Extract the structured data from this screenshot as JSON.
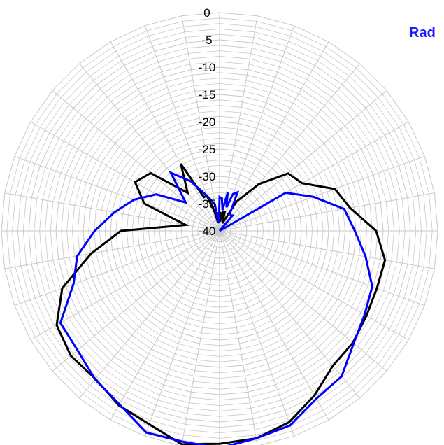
{
  "chart_data": {
    "type": "polar-line",
    "title": "Rad",
    "r_axis": {
      "min": -40,
      "max": 0,
      "tick_labels": [
        "0",
        "-5",
        "-10",
        "-15",
        "-20",
        "-25",
        "-30",
        "-35",
        "-40"
      ],
      "tick_values": [
        0,
        -5,
        -10,
        -15,
        -20,
        -25,
        -30,
        -35,
        -40
      ]
    },
    "grid": true,
    "colors": {
      "grid": "#c8c8c8",
      "title": "#1a1aff"
    },
    "series": [
      {
        "color": "#000000",
        "angles_deg": [
          0,
          2,
          4,
          6,
          8,
          10,
          12,
          15,
          20,
          30,
          40,
          50,
          60,
          70,
          80,
          90,
          100,
          110,
          120,
          130,
          140,
          150,
          160,
          170,
          180,
          190,
          200,
          210,
          220,
          230,
          240,
          250,
          260,
          270,
          280,
          290,
          300,
          310,
          320,
          330,
          335,
          340,
          345,
          350,
          355,
          358
        ],
        "values": [
          -37.2,
          -36.5,
          -38.3,
          -36.6,
          -37.8,
          -36.2,
          -37.5,
          -36.2,
          -38.5,
          -33.8,
          -28.8,
          -23.6,
          -22.5,
          -17.5,
          -15.7,
          -11.3,
          -9.2,
          -9.3,
          -8.9,
          -8.1,
          -7.7,
          -5.2,
          -2.7,
          -1.4,
          -1.0,
          -0.3,
          -2.3,
          -3.1,
          -4.6,
          -4.4,
          -5.5,
          -9.3,
          -16.1,
          -21.9,
          -33.7,
          -25.3,
          -22.1,
          -23.5,
          -30.9,
          -25.8,
          -33.2,
          -33.1,
          -36.0,
          -38.5,
          -36.6,
          -37.0
        ]
      },
      {
        "color": "#0000ff",
        "angles_deg": [
          0,
          4,
          8,
          12,
          16,
          20,
          25,
          30,
          35,
          40,
          50,
          60,
          70,
          80,
          90,
          100,
          110,
          120,
          130,
          140,
          150,
          160,
          170,
          180,
          190,
          200,
          210,
          220,
          230,
          240,
          250,
          260,
          270,
          280,
          290,
          300,
          310,
          320,
          330,
          340,
          350,
          355
        ],
        "values": [
          -33.8,
          -34.0,
          -36.1,
          -32.8,
          -35.5,
          -32.8,
          -32.2,
          -36.0,
          -36.5,
          -36.3,
          -40.0,
          -26.0,
          -21.7,
          -16.8,
          -15.2,
          -12.8,
          -10.2,
          -9.3,
          -7.9,
          -5.2,
          -4.5,
          -2.1,
          -1.4,
          -0.2,
          -0.8,
          -0.7,
          -3.3,
          -4.5,
          -6.0,
          -6.3,
          -11.5,
          -13.5,
          -17.1,
          -20.4,
          -23.3,
          -26.6,
          -31.9,
          -26.1,
          -29.5,
          -33.1,
          -35.0,
          -38.6
        ]
      }
    ]
  }
}
